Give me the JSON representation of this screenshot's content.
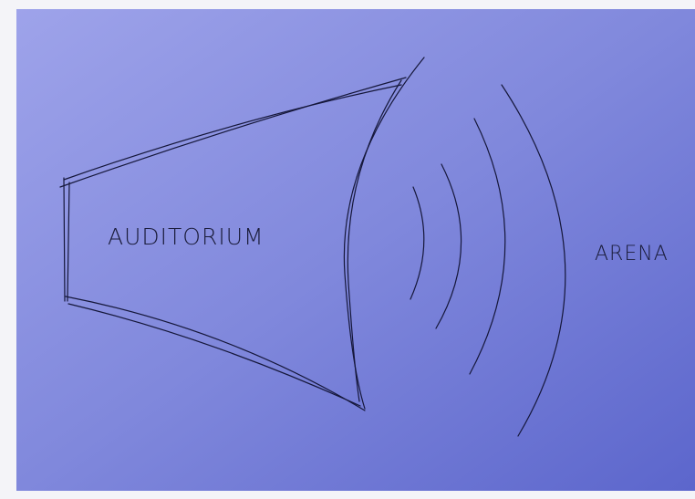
{
  "labels": {
    "left": "AUDITORIUM",
    "right": "ARENA"
  }
}
